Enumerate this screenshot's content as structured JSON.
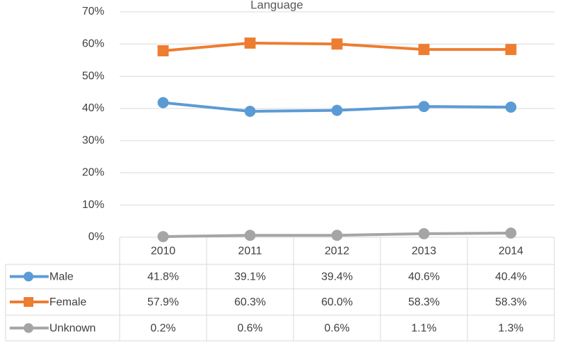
{
  "chart_data": {
    "type": "line",
    "title": "Language",
    "categories": [
      "2010",
      "2011",
      "2012",
      "2013",
      "2014"
    ],
    "series": [
      {
        "name": "Male",
        "color": "#5b9bd5",
        "marker": "circle",
        "values": [
          41.8,
          39.1,
          39.4,
          40.6,
          40.4
        ],
        "value_labels": [
          "41.8%",
          "39.1%",
          "39.4%",
          "40.6%",
          "40.4%"
        ]
      },
      {
        "name": "Female",
        "color": "#ed7d31",
        "marker": "square",
        "values": [
          57.9,
          60.3,
          60.0,
          58.3,
          58.3
        ],
        "value_labels": [
          "57.9%",
          "60.3%",
          "60.0%",
          "58.3%",
          "58.3%"
        ]
      },
      {
        "name": "Unknown",
        "color": "#a5a5a5",
        "marker": "circle",
        "values": [
          0.2,
          0.6,
          0.6,
          1.1,
          1.3
        ],
        "value_labels": [
          "0.2%",
          "0.6%",
          "0.6%",
          "1.1%",
          "1.3%"
        ]
      }
    ],
    "ylim": [
      0,
      70
    ],
    "yticks": [
      {
        "value": 0,
        "label": "0%"
      },
      {
        "value": 10,
        "label": "10%"
      },
      {
        "value": 20,
        "label": "20%"
      },
      {
        "value": 30,
        "label": "30%"
      },
      {
        "value": 40,
        "label": "40%"
      },
      {
        "value": 50,
        "label": "50%"
      },
      {
        "value": 60,
        "label": "60%"
      },
      {
        "value": 70,
        "label": "70%"
      }
    ],
    "grid": true,
    "data_table": true
  }
}
